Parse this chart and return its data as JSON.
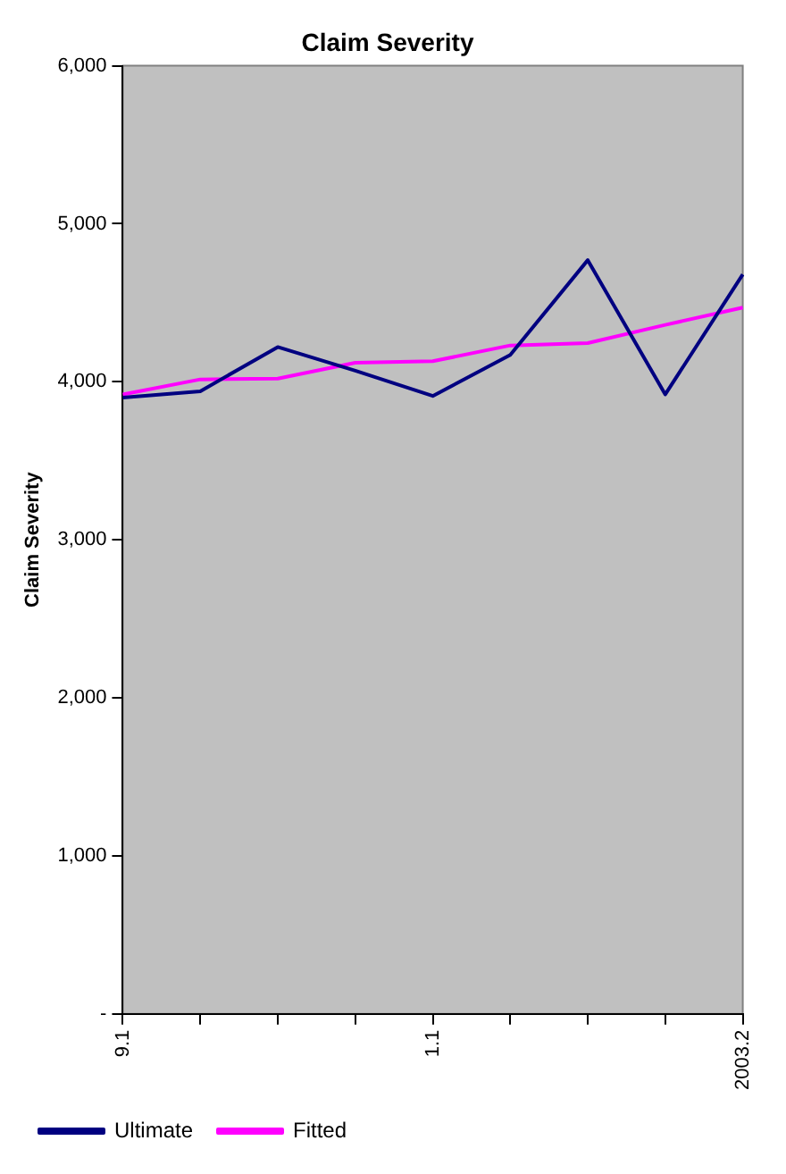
{
  "chart_data": {
    "type": "line",
    "title": "Claim Severity",
    "ylabel": "Claim Severity",
    "categories": [
      "9.1",
      null,
      null,
      null,
      "1.1",
      null,
      null,
      null,
      "2003.2"
    ],
    "series": [
      {
        "name": "Ultimate",
        "color": "#000080",
        "values": [
          3900,
          3940,
          4220,
          4070,
          3910,
          4170,
          4770,
          3920,
          4680
        ]
      },
      {
        "name": "Fitted",
        "color": "#ff00ff",
        "values": [
          3920,
          4015,
          4020,
          4120,
          4130,
          4230,
          4245,
          4360,
          4470
        ]
      }
    ],
    "ylim": [
      0,
      6000
    ],
    "yticks": [
      {
        "value": 0,
        "label": "-"
      },
      {
        "value": 1000,
        "label": "1,000"
      },
      {
        "value": 2000,
        "label": "2,000"
      },
      {
        "value": 3000,
        "label": "3,000"
      },
      {
        "value": 4000,
        "label": "4,000"
      },
      {
        "value": 5000,
        "label": "5,000"
      },
      {
        "value": 6000,
        "label": "6,000"
      }
    ],
    "grid": false,
    "legend": "bottom left",
    "marker": "none",
    "line_style": "solid"
  }
}
